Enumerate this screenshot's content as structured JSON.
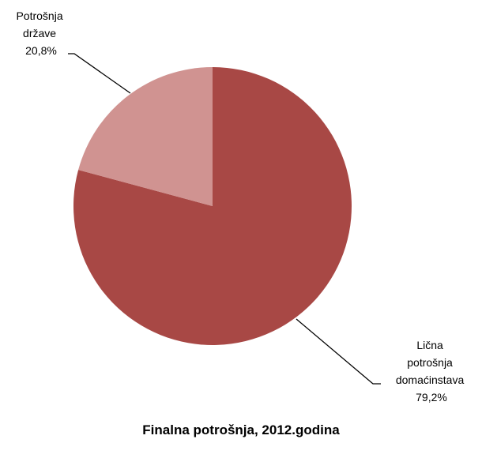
{
  "chart_data": {
    "type": "pie",
    "title": "Finalna potrošnja, 2012.godina",
    "slices": [
      {
        "label_lines": [
          "Lična",
          "potrošnja",
          "domaćinstava"
        ],
        "value_label": "79,2%",
        "value": 79.2,
        "color": "#a84845"
      },
      {
        "label_lines": [
          "Potrošnja",
          "države"
        ],
        "value_label": "20,8%",
        "value": 20.8,
        "color": "#d09391"
      }
    ],
    "legend": "none"
  }
}
